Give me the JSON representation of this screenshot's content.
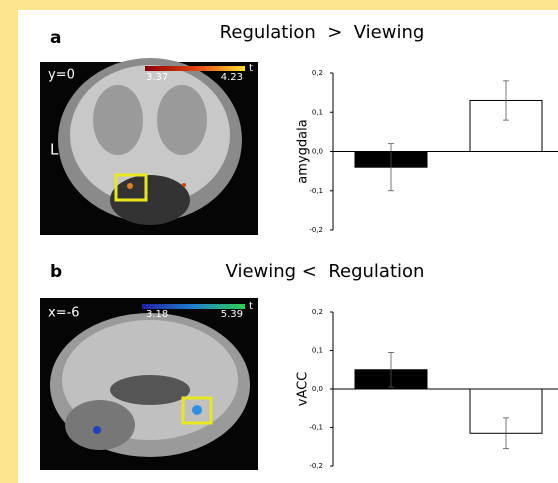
{
  "panels": [
    {
      "label": "a",
      "image": {
        "coord": "y=0",
        "side": "L",
        "cbar_min": "3.37",
        "cbar_max": "4.23",
        "cbar_unit": "t"
      }
    },
    {
      "label": "b",
      "image": {
        "coord": "x=-6",
        "cbar_min": "3.18",
        "cbar_max": "5.39",
        "cbar_unit": "t"
      }
    }
  ],
  "chart_data": [
    {
      "type": "bar",
      "title": "Regulation  >  Viewing",
      "ylabel": "amygdala",
      "categories": [
        null,
        null
      ],
      "values": [
        -0.04,
        0.13
      ],
      "errors": [
        0.06,
        0.05
      ],
      "colors": [
        "#000000",
        "#ffffff"
      ],
      "ylim": [
        -0.2,
        0.2
      ],
      "yticks": [
        {
          "value": 0.2,
          "label": "0,2"
        },
        {
          "value": 0.1,
          "label": "0,1"
        },
        {
          "value": 0,
          "label": "0,0"
        },
        {
          "value": -0.1,
          "label": "-0,1"
        },
        {
          "value": -0.2,
          "label": "-0,2"
        }
      ]
    },
    {
      "type": "bar",
      "title": "Viewing <  Regulation",
      "ylabel": "vACC",
      "categories": [
        null,
        null
      ],
      "values": [
        0.05,
        -0.115
      ],
      "errors": [
        0.045,
        0.04
      ],
      "colors": [
        "#000000",
        "#ffffff"
      ],
      "ylim": [
        -0.2,
        0.2
      ],
      "yticks": [
        {
          "value": 0.2,
          "label": "0,2"
        },
        {
          "value": 0.1,
          "label": "0,1"
        },
        {
          "value": 0,
          "label": "0,0"
        },
        {
          "value": -0.1,
          "label": "-0,1"
        },
        {
          "value": -0.2,
          "label": "-0,2"
        }
      ]
    }
  ]
}
